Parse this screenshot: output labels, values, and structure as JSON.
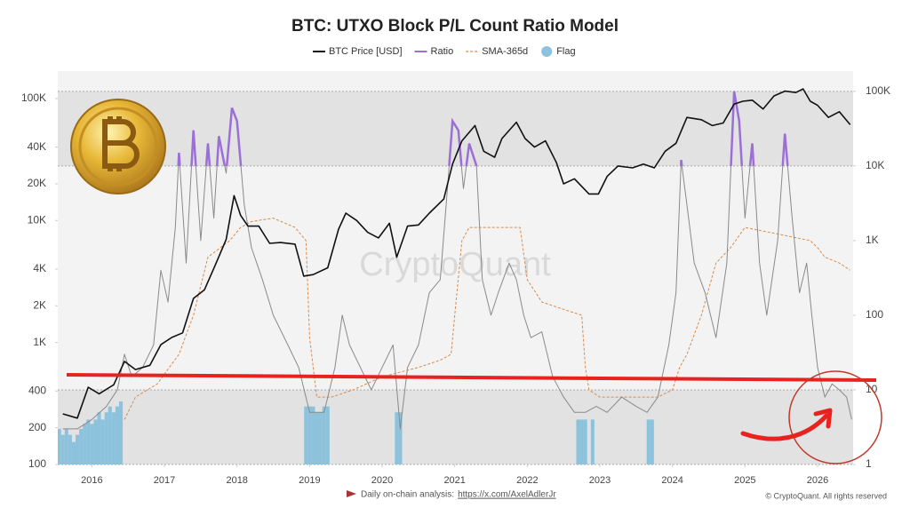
{
  "chart_data": {
    "type": "line",
    "title": "BTC: UTXO Block P/L Count Ratio Model",
    "watermark": "CryptoQuant",
    "footer_text": "Daily on-chain analysis:",
    "footer_link": "https://x.com/AxelAdlerJr",
    "copyright": "© CryptoQuant. All rights reserved",
    "xlim": [
      2015.53,
      2026.49
    ],
    "xticks": [
      2016,
      2017,
      2018,
      2019,
      2020,
      2021,
      2022,
      2023,
      2024,
      2025,
      2026
    ],
    "ylog": true,
    "ylim": [
      100,
      168000
    ],
    "yticks": [
      100,
      200,
      400,
      {
        "value": 1000,
        "label": "1K"
      },
      {
        "value": 2000,
        "label": "2K"
      },
      {
        "value": 4000,
        "label": "4K"
      },
      {
        "value": 10000,
        "label": "10K"
      },
      {
        "value": 20000,
        "label": "20K"
      },
      {
        "value": 40000,
        "label": "40K"
      },
      {
        "value": 100000,
        "label": "100K"
      }
    ],
    "y2log": true,
    "y2lim": [
      1,
      187000
    ],
    "y2ticks": [
      1,
      10,
      100,
      {
        "value": 1000,
        "label": "1K"
      },
      {
        "value": 10000,
        "label": "10K"
      },
      {
        "value": 100000,
        "label": "100K"
      }
    ],
    "shaded_y2": [
      [
        10000,
        100000
      ],
      [
        1,
        10
      ]
    ],
    "grid": false,
    "legend": "top",
    "series": [
      {
        "name": "BTC Price [USD]",
        "color": "#111111",
        "axis": "y",
        "x": [
          2015.6,
          2015.8,
          2015.95,
          2016.1,
          2016.3,
          2016.45,
          2016.6,
          2016.8,
          2016.95,
          2017.1,
          2017.25,
          2017.4,
          2017.55,
          2017.7,
          2017.85,
          2017.96,
          2018.05,
          2018.15,
          2018.3,
          2018.45,
          2018.6,
          2018.8,
          2018.92,
          2019.05,
          2019.25,
          2019.4,
          2019.5,
          2019.65,
          2019.8,
          2019.95,
          2020.1,
          2020.2,
          2020.35,
          2020.5,
          2020.65,
          2020.85,
          2020.97,
          2021.1,
          2021.28,
          2021.4,
          2021.55,
          2021.65,
          2021.85,
          2021.97,
          2022.1,
          2022.25,
          2022.4,
          2022.5,
          2022.65,
          2022.85,
          2022.98,
          2023.1,
          2023.25,
          2023.45,
          2023.6,
          2023.75,
          2023.9,
          2024.05,
          2024.2,
          2024.4,
          2024.55,
          2024.7,
          2024.85,
          2024.97,
          2025.1,
          2025.25,
          2025.4,
          2025.55,
          2025.7,
          2025.8,
          2025.9,
          2026.0,
          2026.15,
          2026.3,
          2026.45
        ],
        "values": [
          260,
          240,
          430,
          380,
          450,
          700,
          600,
          650,
          960,
          1100,
          1200,
          2300,
          2700,
          4300,
          7000,
          16000,
          11000,
          9000,
          9000,
          6500,
          6600,
          6400,
          3500,
          3600,
          4100,
          8500,
          11500,
          10000,
          8000,
          7200,
          9500,
          5000,
          9000,
          9200,
          11500,
          15000,
          29000,
          45000,
          60000,
          37000,
          33000,
          47000,
          64000,
          47000,
          40000,
          45000,
          30000,
          20000,
          22000,
          16500,
          16500,
          23000,
          28000,
          27000,
          29000,
          27000,
          37000,
          43000,
          70000,
          67000,
          60000,
          63000,
          90000,
          95000,
          97000,
          82000,
          105000,
          115000,
          112000,
          120000,
          95000,
          88000,
          70000,
          78000,
          61000
        ]
      },
      {
        "name": "Ratio",
        "color": "#8a8a8a",
        "axis": "y2",
        "highlight_above": 10000,
        "highlight_color": "#9b6fd6",
        "x": [
          2015.6,
          2015.8,
          2016.0,
          2016.2,
          2016.35,
          2016.45,
          2016.55,
          2016.7,
          2016.85,
          2016.95,
          2017.05,
          2017.15,
          2017.2,
          2017.3,
          2017.4,
          2017.5,
          2017.6,
          2017.68,
          2017.75,
          2017.85,
          2017.93,
          2018.0,
          2018.1,
          2018.2,
          2018.35,
          2018.5,
          2018.7,
          2018.85,
          2019.0,
          2019.2,
          2019.35,
          2019.45,
          2019.55,
          2019.7,
          2019.85,
          2020.0,
          2020.15,
          2020.25,
          2020.35,
          2020.5,
          2020.65,
          2020.8,
          2020.9,
          2020.97,
          2021.05,
          2021.12,
          2021.2,
          2021.3,
          2021.38,
          2021.5,
          2021.6,
          2021.75,
          2021.85,
          2021.95,
          2022.05,
          2022.2,
          2022.35,
          2022.5,
          2022.65,
          2022.8,
          2022.95,
          2023.1,
          2023.3,
          2023.5,
          2023.65,
          2023.8,
          2023.95,
          2024.05,
          2024.12,
          2024.2,
          2024.3,
          2024.45,
          2024.6,
          2024.75,
          2024.85,
          2024.92,
          2025.0,
          2025.1,
          2025.2,
          2025.3,
          2025.45,
          2025.55,
          2025.65,
          2025.75,
          2025.85,
          2025.92,
          2026.0,
          2026.1,
          2026.2,
          2026.3,
          2026.4,
          2026.47
        ],
        "values": [
          3,
          3,
          4,
          6,
          10,
          30,
          15,
          20,
          40,
          400,
          150,
          1500,
          15000,
          500,
          30000,
          1000,
          20000,
          2000,
          25000,
          8000,
          60000,
          40000,
          3000,
          800,
          300,
          100,
          40,
          20,
          5,
          5,
          20,
          100,
          40,
          20,
          10,
          20,
          40,
          3,
          20,
          40,
          200,
          300,
          5000,
          40000,
          30000,
          5000,
          20000,
          10000,
          300,
          100,
          200,
          500,
          300,
          100,
          50,
          60,
          15,
          8,
          5,
          5,
          6,
          5,
          8,
          6,
          5,
          8,
          40,
          200,
          12000,
          3000,
          500,
          200,
          50,
          500,
          100000,
          40000,
          2000,
          20000,
          500,
          100,
          1000,
          27000,
          2000,
          200,
          500,
          100,
          20,
          8,
          12,
          10,
          8,
          4
        ]
      },
      {
        "name": "SMA-365d",
        "color": "#d98a4a",
        "axis": "y2",
        "dash": true,
        "x": [
          2016.45,
          2016.6,
          2016.9,
          2017.2,
          2017.4,
          2017.6,
          2017.9,
          2018.05,
          2018.2,
          2018.5,
          2018.8,
          2018.95,
          2019.0,
          2019.1,
          2019.3,
          2019.6,
          2020.0,
          2020.5,
          2020.8,
          2020.95,
          2021.0,
          2021.1,
          2021.2,
          2021.9,
          2022.0,
          2022.2,
          2022.5,
          2022.75,
          2022.8,
          2022.85,
          2023.0,
          2023.5,
          2023.8,
          2024.0,
          2024.1,
          2024.2,
          2024.4,
          2024.6,
          2024.8,
          2025.0,
          2025.5,
          2025.9,
          2026.0,
          2026.1,
          2026.3,
          2026.45
        ],
        "values": [
          4,
          8,
          12,
          30,
          100,
          600,
          1000,
          1500,
          1800,
          2000,
          1500,
          1000,
          50,
          8,
          8,
          10,
          15,
          20,
          25,
          30,
          100,
          1000,
          1500,
          1500,
          300,
          150,
          120,
          100,
          20,
          10,
          8,
          8,
          8,
          10,
          20,
          30,
          100,
          500,
          800,
          1500,
          1200,
          1000,
          800,
          600,
          500,
          400
        ]
      },
      {
        "name": "Flag",
        "color": "#8cc2dc",
        "axis": "y2",
        "type": "bar",
        "x": [
          2015.55,
          2015.6,
          2015.65,
          2015.7,
          2015.75,
          2015.8,
          2015.85,
          2015.9,
          2015.95,
          2016.0,
          2016.05,
          2016.1,
          2016.15,
          2016.2,
          2016.25,
          2016.3,
          2016.35,
          2016.4,
          2018.95,
          2019.0,
          2019.05,
          2019.1,
          2019.15,
          2019.2,
          2019.25,
          2020.2,
          2020.25,
          2022.7,
          2022.75,
          2022.8,
          2022.9,
          2023.67,
          2023.72
        ],
        "values": [
          3,
          2.5,
          3,
          2.5,
          2,
          2.5,
          3,
          3.5,
          4,
          3.5,
          4,
          5,
          4,
          5,
          6,
          5,
          6,
          7,
          6,
          6,
          6,
          5,
          5,
          6,
          6,
          5,
          5,
          4,
          4,
          4,
          4,
          4,
          4
        ]
      }
    ]
  }
}
